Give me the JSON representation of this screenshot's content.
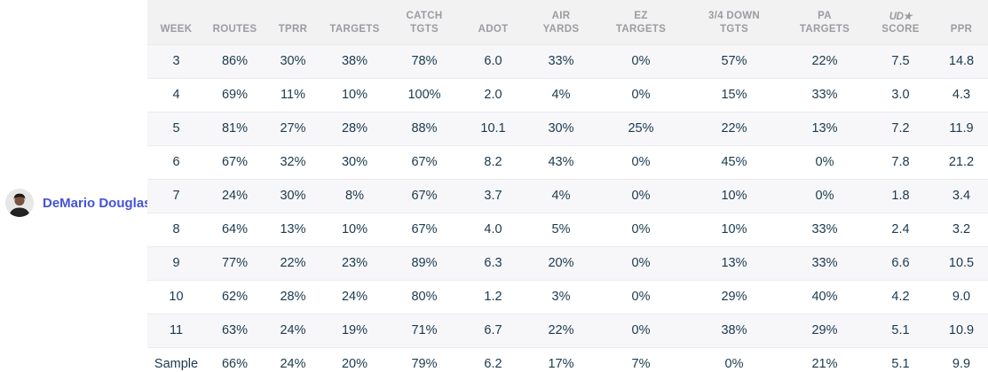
{
  "player": {
    "name": "DeMario Douglas",
    "avatar_icon": "player-headshot"
  },
  "colors": {
    "player_link": "#4553d6",
    "data_text": "#1a394e",
    "header_text": "#9b9ba1",
    "header_bg": "#f2f2f3",
    "row_stripe": "#f7f7f9"
  },
  "table": {
    "columns": [
      {
        "key": "week",
        "label": "WEEK"
      },
      {
        "key": "routes",
        "label": "ROUTES"
      },
      {
        "key": "tprr",
        "label": "TPRR"
      },
      {
        "key": "targets",
        "label": "TARGETS"
      },
      {
        "key": "catch_tgts",
        "label": "CATCH\nTGTS"
      },
      {
        "key": "adot",
        "label": "ADOT"
      },
      {
        "key": "air_yards",
        "label": "AIR\nYARDS"
      },
      {
        "key": "ez_targets",
        "label": "EZ\nTARGETS"
      },
      {
        "key": "down_tgts",
        "label": "3/4 DOWN\nTGTS"
      },
      {
        "key": "pa_targets",
        "label": "PA\nTARGETS"
      },
      {
        "key": "ud_score",
        "label": "SCORE",
        "logo": "UD★"
      },
      {
        "key": "ppr",
        "label": "PPR"
      }
    ],
    "rows": [
      [
        "3",
        "86%",
        "30%",
        "38%",
        "78%",
        "6.0",
        "33%",
        "0%",
        "57%",
        "22%",
        "7.5",
        "14.8"
      ],
      [
        "4",
        "69%",
        "11%",
        "10%",
        "100%",
        "2.0",
        "4%",
        "0%",
        "15%",
        "33%",
        "3.0",
        "4.3"
      ],
      [
        "5",
        "81%",
        "27%",
        "28%",
        "88%",
        "10.1",
        "30%",
        "25%",
        "22%",
        "13%",
        "7.2",
        "11.9"
      ],
      [
        "6",
        "67%",
        "32%",
        "30%",
        "67%",
        "8.2",
        "43%",
        "0%",
        "45%",
        "0%",
        "7.8",
        "21.2"
      ],
      [
        "7",
        "24%",
        "30%",
        "8%",
        "67%",
        "3.7",
        "4%",
        "0%",
        "10%",
        "0%",
        "1.8",
        "3.4"
      ],
      [
        "8",
        "64%",
        "13%",
        "10%",
        "67%",
        "4.0",
        "5%",
        "0%",
        "10%",
        "33%",
        "2.4",
        "3.2"
      ],
      [
        "9",
        "77%",
        "22%",
        "23%",
        "89%",
        "6.3",
        "20%",
        "0%",
        "13%",
        "33%",
        "6.6",
        "10.5"
      ],
      [
        "10",
        "62%",
        "28%",
        "24%",
        "80%",
        "1.2",
        "3%",
        "0%",
        "29%",
        "40%",
        "4.2",
        "9.0"
      ],
      [
        "11",
        "63%",
        "24%",
        "19%",
        "71%",
        "6.7",
        "22%",
        "0%",
        "38%",
        "29%",
        "5.1",
        "10.9"
      ],
      [
        "Sample",
        "66%",
        "24%",
        "20%",
        "79%",
        "6.2",
        "17%",
        "7%",
        "0%",
        "21%",
        "5.1",
        "9.9"
      ]
    ]
  }
}
